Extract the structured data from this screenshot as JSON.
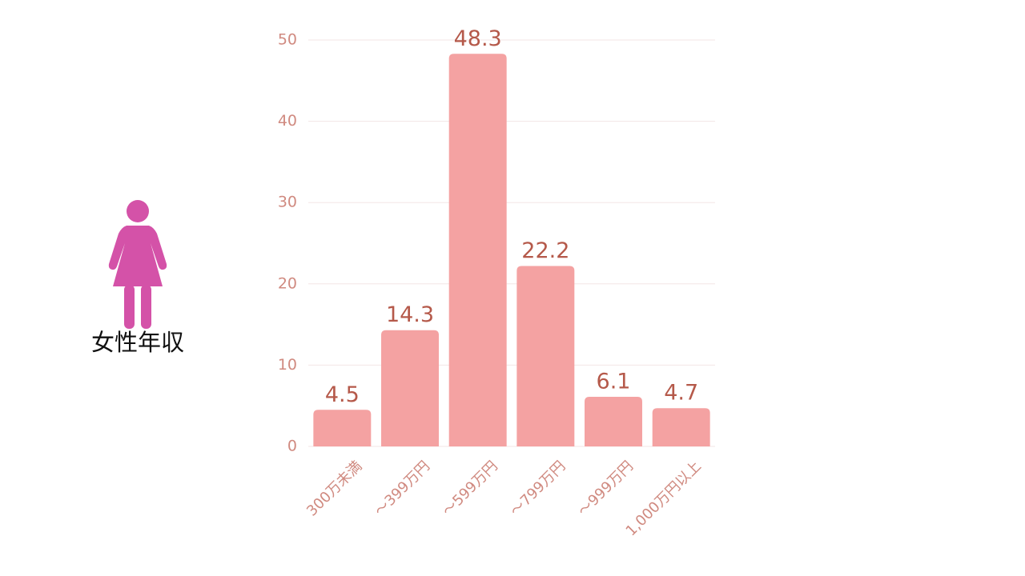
{
  "side_label": "女性年収",
  "chart_data": {
    "type": "bar",
    "categories": [
      "300万未満",
      "～399万円",
      "～599万円",
      "～799万円",
      "～999万円",
      "1,000万円以上"
    ],
    "values": [
      4.5,
      14.3,
      48.3,
      22.2,
      6.1,
      4.7
    ],
    "color": "#f4a2a2",
    "ylim": [
      0,
      50
    ],
    "yticks": [
      0,
      10,
      20,
      30,
      40,
      50
    ],
    "grid": true
  }
}
